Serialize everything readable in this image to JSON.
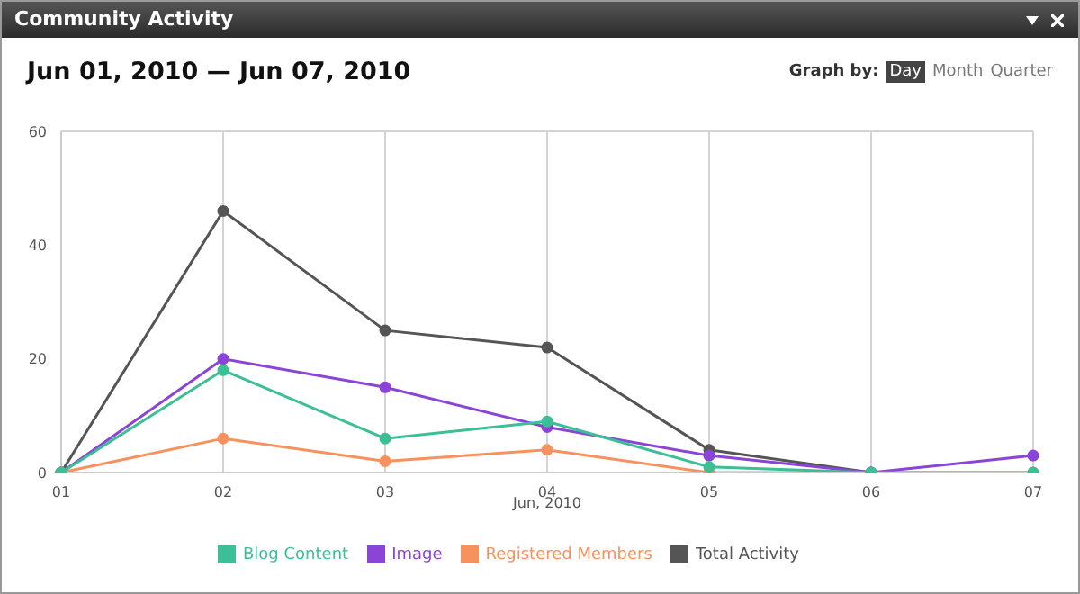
{
  "chart_data": {
    "type": "line",
    "title": "Community Activity",
    "subtitle": "Jun 01, 2010 — Jun 07, 2010",
    "xlabel": "Jun, 2010",
    "annotations": [
      "Graph by:",
      "Day",
      "Month",
      "Quarter"
    ],
    "categories": [
      "01",
      "02",
      "03",
      "04",
      "05",
      "06",
      "07"
    ],
    "series": [
      {
        "name": "Total Activity",
        "color": "#555555",
        "values": [
          0,
          46,
          25,
          22,
          4,
          0,
          null
        ]
      },
      {
        "name": "Registered Members",
        "color": "#f7925f",
        "values": [
          0,
          6,
          2,
          4,
          0,
          0,
          0
        ]
      },
      {
        "name": "Image",
        "color": "#8a45d6",
        "values": [
          0,
          20,
          15,
          8,
          3,
          0,
          3
        ]
      },
      {
        "name": "Blog Content",
        "color": "#3cbf96",
        "values": [
          0,
          18,
          6,
          9,
          1,
          0,
          0
        ]
      }
    ],
    "ylim": [
      0,
      60
    ],
    "yticks": [
      0,
      20,
      40,
      60
    ],
    "grid": true,
    "legend": "bottom",
    "marker": "circle",
    "line_style": "solid"
  }
}
